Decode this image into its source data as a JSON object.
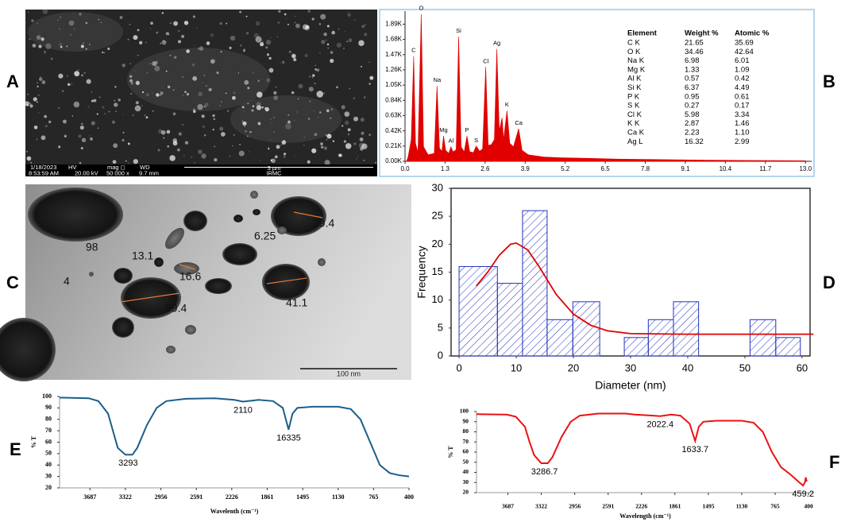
{
  "panels": [
    "A",
    "B",
    "C",
    "D",
    "E",
    "F"
  ],
  "sem": {
    "info": [
      "1/18/2023",
      "8:53:59 AM",
      "HV",
      "20.00 kV",
      "mag ◻",
      "50 000 x",
      "WD",
      "9.7 mm",
      "3 µm",
      "IRMC"
    ]
  },
  "tem": {
    "labels": [
      98,
      13.1,
      4,
      16.6,
      59.4,
      6.25,
      39.4,
      41.1
    ],
    "scale": "100 nm"
  },
  "edx_table": {
    "header": [
      "Element",
      "Weight %",
      "Atomic %"
    ],
    "rows": [
      [
        "C K",
        "21.65",
        "35.69"
      ],
      [
        "O K",
        "34.46",
        "42.64"
      ],
      [
        "Na K",
        "6.98",
        "6.01"
      ],
      [
        "Mg K",
        "1.33",
        "1.09"
      ],
      [
        "Al K",
        "0.57",
        "0.42"
      ],
      [
        "Si K",
        "6.37",
        "4.49"
      ],
      [
        "P K",
        "0.95",
        "0.61"
      ],
      [
        "S K",
        "0.27",
        "0.17"
      ],
      [
        "Cl K",
        "5.98",
        "3.34"
      ],
      [
        "K K",
        "2.87",
        "1.46"
      ],
      [
        "Ca K",
        "2.23",
        "1.10"
      ],
      [
        "Ag L",
        "16.32",
        "2.99"
      ]
    ]
  },
  "chart_data": [
    {
      "type": "area",
      "color": "#e00000",
      "x": [
        0.05,
        0.1,
        0.2,
        0.28,
        0.34,
        0.42,
        0.525,
        0.6,
        0.75,
        0.95,
        1.04,
        1.12,
        1.2,
        1.25,
        1.32,
        1.42,
        1.49,
        1.56,
        1.66,
        1.74,
        1.82,
        1.92,
        2.01,
        2.1,
        2.22,
        2.31,
        2.42,
        2.52,
        2.62,
        2.7,
        2.8,
        2.9,
        2.98,
        3.06,
        3.15,
        3.2,
        3.31,
        3.4,
        3.52,
        3.69,
        3.8,
        4.0,
        4.5,
        5.0,
        6.0,
        7.0,
        8.0,
        9.0,
        10.0,
        11.0,
        12.0,
        13.0
      ],
      "values": [
        0,
        60,
        300,
        1450,
        250,
        120,
        2030,
        200,
        90,
        110,
        1040,
        180,
        140,
        350,
        150,
        110,
        200,
        130,
        160,
        1720,
        200,
        130,
        350,
        130,
        120,
        210,
        140,
        170,
        1300,
        220,
        230,
        300,
        1550,
        420,
        600,
        300,
        700,
        250,
        200,
        450,
        150,
        90,
        60,
        50,
        40,
        30,
        25,
        20,
        15,
        12,
        10,
        8
      ],
      "peaks": [
        {
          "label": "C",
          "x": 0.28
        },
        {
          "label": "O",
          "x": 0.525
        },
        {
          "label": "Na",
          "x": 1.04
        },
        {
          "label": "Mg",
          "x": 1.25
        },
        {
          "label": "Al",
          "x": 1.49
        },
        {
          "label": "Si",
          "x": 1.74
        },
        {
          "label": "P",
          "x": 2.01
        },
        {
          "label": "S",
          "x": 2.31
        },
        {
          "label": "Cl",
          "x": 2.62
        },
        {
          "label": "Ag",
          "x": 2.98
        },
        {
          "label": "K",
          "x": 3.31
        },
        {
          "label": "Ca",
          "x": 3.69
        }
      ],
      "xlim": [
        0,
        13.2
      ],
      "ylim": [
        0,
        2070
      ],
      "xticks": [
        {
          "value": 0,
          "label": "0.0"
        },
        1.3,
        2.6,
        3.9,
        5.2,
        6.5,
        7.8,
        9.1,
        10.4,
        11.7,
        {
          "value": 13,
          "label": "13.0"
        }
      ],
      "yticks": [
        {
          "value": 0,
          "label": "0.00K"
        },
        {
          "value": 210,
          "label": "0.21K"
        },
        {
          "value": 420,
          "label": "0.42K"
        },
        {
          "value": 630,
          "label": "0.63K"
        },
        {
          "value": 840,
          "label": "0.84K"
        },
        {
          "value": 1050,
          "label": "1.05K"
        },
        {
          "value": 1260,
          "label": "1.26K"
        },
        {
          "value": 1470,
          "label": "1.47K"
        },
        {
          "value": 1680,
          "label": "1.68K"
        },
        {
          "value": 1890,
          "label": "1.89K"
        }
      ]
    },
    {
      "type": "histogram",
      "x_label": "Diameter (nm)",
      "y_label": "Frequency",
      "color": "#2233bb",
      "bins": [
        0,
        6.7,
        11.1,
        15.4,
        19.9,
        24.6,
        28.9,
        33.1,
        37.5,
        41.9,
        46.4,
        50.9,
        55.4,
        59.7
      ],
      "counts": [
        16,
        13,
        26,
        6.5,
        9.7,
        0,
        3.3,
        6.5,
        9.7,
        0,
        0,
        6.5,
        3.3
      ],
      "fit": {
        "color": "#e00000",
        "x": [
          3,
          5,
          7,
          9,
          10,
          12,
          14,
          17,
          20,
          23,
          26,
          30,
          40,
          50,
          62
        ],
        "values": [
          12.5,
          15,
          18,
          20,
          20.2,
          19,
          16,
          11,
          7.5,
          5.5,
          4.5,
          4,
          3.9,
          3.9,
          3.9
        ]
      },
      "xlim": [
        -1.4,
        61.4
      ],
      "ylim": [
        0,
        30
      ],
      "xticks": [
        0,
        10,
        20,
        30,
        40,
        50,
        60
      ],
      "yticks": [
        0,
        5,
        10,
        15,
        20,
        25,
        30
      ]
    },
    {
      "type": "line",
      "x_label": "Wavelenth (cm⁻¹)",
      "y_label": "% T",
      "color": "#1a5e8a",
      "x": [
        4000,
        3700,
        3600,
        3500,
        3450,
        3400,
        3322,
        3250,
        3200,
        3100,
        3000,
        2900,
        2700,
        2400,
        2200,
        2110,
        1950,
        1800,
        1700,
        1640,
        1600,
        1550,
        1400,
        1130,
        1000,
        900,
        800,
        700,
        600,
        500,
        400
      ],
      "values": [
        99,
        98.5,
        96,
        85,
        70,
        55,
        49,
        49,
        55,
        75,
        90,
        96,
        98,
        98.5,
        97,
        95.5,
        97,
        96,
        90,
        71,
        85,
        90,
        91,
        91,
        89,
        80,
        60,
        40,
        33,
        31,
        30
      ],
      "annotations": [
        {
          "label": "3293",
          "x": 3293
        },
        {
          "label": "2110",
          "x": 2110
        },
        {
          "label": "16335",
          "x": 1640
        }
      ],
      "xlim": [
        4000,
        400
      ],
      "ylim": [
        20,
        100
      ],
      "xticks": [
        3687,
        3322,
        2956,
        2591,
        2226,
        1861,
        1495,
        1130,
        765,
        400
      ],
      "yticks": [
        20,
        30,
        40,
        50,
        60,
        70,
        80,
        90,
        100
      ]
    },
    {
      "type": "line",
      "x_label": "Wavelength  (cm⁻¹)",
      "y_label": "% T",
      "color": "#ee1111",
      "x": [
        4030,
        3700,
        3600,
        3500,
        3450,
        3400,
        3322,
        3250,
        3200,
        3100,
        3000,
        2900,
        2700,
        2400,
        2300,
        2100,
        2022,
        1900,
        1800,
        1700,
        1640,
        1600,
        1550,
        1400,
        1130,
        1000,
        900,
        800,
        700,
        600,
        500,
        460,
        440,
        430,
        420
      ],
      "values": [
        97.5,
        97,
        95,
        85,
        70,
        57,
        49,
        49,
        55,
        75,
        90,
        96,
        98,
        98,
        97,
        96,
        95.5,
        97,
        96,
        88,
        71,
        85,
        90,
        91,
        91,
        89,
        80,
        60,
        45,
        38,
        30,
        27,
        30,
        35,
        31
      ],
      "annotations": [
        {
          "label": "3286.7",
          "x": 3286.7
        },
        {
          "label": "2022.4",
          "x": 2022
        },
        {
          "label": "1633.7",
          "x": 1640
        },
        {
          "label": "459.2",
          "x": 460
        }
      ],
      "xlim": [
        4030,
        340
      ],
      "ylim": [
        20,
        100
      ],
      "xticks": [
        3687,
        3322,
        2956,
        2591,
        2226,
        1861,
        1495,
        1130,
        765,
        400
      ],
      "yticks": [
        20,
        30,
        40,
        50,
        60,
        70,
        80,
        90,
        100
      ]
    }
  ]
}
